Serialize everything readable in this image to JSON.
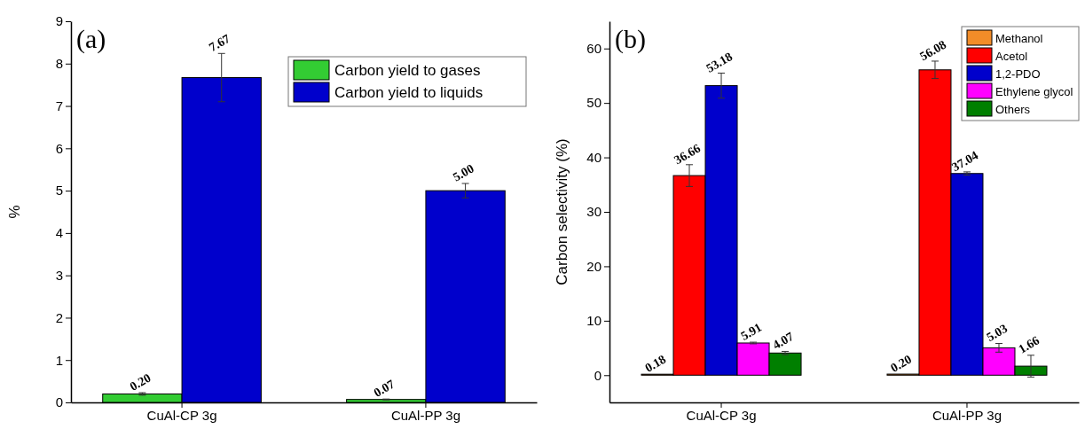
{
  "chart_data": [
    {
      "type": "bar",
      "title": "(a)",
      "ylabel": "%",
      "categories": [
        "CuAl-CP 3g",
        "CuAl-PP 3g"
      ],
      "ylim": [
        0,
        9
      ],
      "yticks": [
        0,
        1,
        2,
        3,
        4,
        5,
        6,
        7,
        8,
        9
      ],
      "legend": "top right",
      "series": [
        {
          "name": "Carbon yield to gases",
          "color": "#33cc33",
          "values": [
            0.2,
            0.07
          ],
          "value_labels": [
            "0.20",
            "0.07"
          ],
          "errors": [
            0.03,
            0.01
          ]
        },
        {
          "name": "Carbon yield to liquids",
          "color": "#0000cc",
          "values": [
            7.67,
            5.0
          ],
          "value_labels": [
            "7.67",
            "5.00"
          ],
          "errors": [
            0.57,
            0.17
          ]
        }
      ]
    },
    {
      "type": "bar",
      "title": "(b)",
      "ylabel": "Carbon selectivity (%)",
      "categories": [
        "CuAl-CP 3g",
        "CuAl-PP 3g"
      ],
      "ylim": [
        -5,
        65
      ],
      "yticks": [
        0,
        10,
        20,
        30,
        40,
        50,
        60
      ],
      "legend": "top right",
      "series": [
        {
          "name": "Methanol",
          "color": "#f28c28",
          "values": [
            0.18,
            0.2
          ],
          "value_labels": [
            "0.18",
            "0.20"
          ]
        },
        {
          "name": "Acetol",
          "color": "#ff0000",
          "values": [
            36.66,
            56.08
          ],
          "value_labels": [
            "36.66",
            "56.08"
          ],
          "errors": [
            2.0,
            1.6
          ]
        },
        {
          "name": "1,2-PDO",
          "color": "#0000cc",
          "values": [
            53.18,
            37.04
          ],
          "value_labels": [
            "53.18",
            "37.04"
          ],
          "errors": [
            2.3,
            0.3
          ]
        },
        {
          "name": "Ethylene glycol",
          "color": "#ff00ff",
          "values": [
            5.91,
            5.03
          ],
          "value_labels": [
            "5.91",
            "5.03"
          ],
          "errors": [
            0.15,
            0.8
          ]
        },
        {
          "name": "Others",
          "color": "#007f00",
          "values": [
            4.07,
            1.66
          ],
          "value_labels": [
            "4.07",
            "1.66"
          ],
          "errors": [
            0.3,
            2.0
          ]
        }
      ]
    }
  ]
}
